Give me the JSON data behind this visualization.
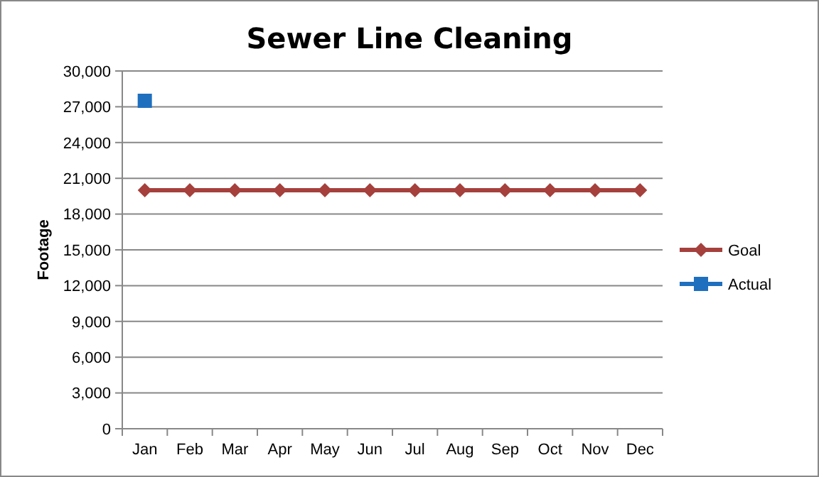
{
  "chart_data": {
    "type": "line",
    "title": "Sewer Line Cleaning",
    "ylabel": "Footage",
    "categories": [
      "Jan",
      "Feb",
      "Mar",
      "Apr",
      "May",
      "Jun",
      "Jul",
      "Aug",
      "Sep",
      "Oct",
      "Nov",
      "Dec"
    ],
    "series": [
      {
        "name": "Goal",
        "color": "#a5403c",
        "marker": "diamond",
        "values": [
          20000,
          20000,
          20000,
          20000,
          20000,
          20000,
          20000,
          20000,
          20000,
          20000,
          20000,
          20000
        ]
      },
      {
        "name": "Actual",
        "color": "#1f6fbf",
        "marker": "square",
        "values": [
          27500,
          null,
          null,
          null,
          null,
          null,
          null,
          null,
          null,
          null,
          null,
          null
        ]
      }
    ],
    "ylim": [
      0,
      30000
    ],
    "yticks": [
      {
        "value": 0,
        "label": "0"
      },
      {
        "value": 3000,
        "label": "3,000"
      },
      {
        "value": 6000,
        "label": "6,000"
      },
      {
        "value": 9000,
        "label": "9,000"
      },
      {
        "value": 12000,
        "label": "12,000"
      },
      {
        "value": 15000,
        "label": "15,000"
      },
      {
        "value": 18000,
        "label": "18,000"
      },
      {
        "value": 21000,
        "label": "21,000"
      },
      {
        "value": 24000,
        "label": "24,000"
      },
      {
        "value": 27000,
        "label": "27,000"
      },
      {
        "value": 30000,
        "label": "30,000"
      }
    ],
    "grid": "y",
    "legend": "right"
  }
}
